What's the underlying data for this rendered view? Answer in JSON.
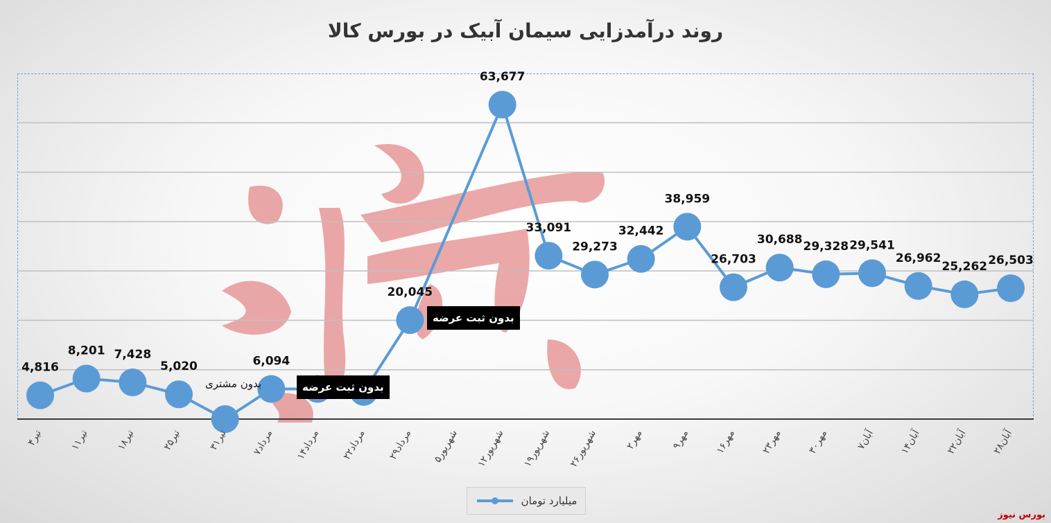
{
  "chart_data": {
    "type": "line",
    "title": "روند درآمدزایی سیمان آبیک در بورس کالا",
    "categories": [
      "۴تیر",
      "۱۱تیر",
      "۱۸تیر",
      "۲۵تیر",
      "۳۱تیر",
      "۷مرداد",
      "۱۴مرداد",
      "۲۲مرداد",
      "۲۹مرداد",
      "۵شهریور",
      "۱۲شهریور",
      "۱۹شهریور",
      "۲۶شهریور",
      "۲مهر",
      "۹مهر",
      "۱۶مهر",
      "۲۳مهر",
      "۳۰مهر",
      "۷آبان",
      "۱۴آبان",
      "۲۲آبان",
      "۲۸آبان"
    ],
    "series": [
      {
        "name": "میلیارد تومان",
        "values": [
          4816,
          8201,
          7428,
          5020,
          0,
          6094,
          6094,
          5500,
          20045,
          null,
          63677,
          33091,
          29273,
          32442,
          38959,
          26703,
          30688,
          29328,
          29541,
          26962,
          25262,
          26503
        ],
        "labels": [
          "4,816",
          "8,201",
          "7,428",
          "5,020",
          "",
          "6,094",
          "",
          "",
          "20,045",
          "",
          "63,677",
          "33,091",
          "29,273",
          "32,442",
          "38,959",
          "26,703",
          "30,688",
          "29,328",
          "29,541",
          "26,962",
          "25,262",
          "26,503"
        ],
        "color": "#5b9bd5"
      }
    ],
    "ylim": [
      0,
      70000
    ],
    "grid": true,
    "legend_position": "bottom"
  },
  "annotations": {
    "no_customer": "بدون مشتری",
    "no_offer_1": "بدون ثبت عرضه",
    "no_offer_2": "بدون ثبت عرضه"
  },
  "watermark_text": "بورس نیوز",
  "source_label": "بورس نیوز"
}
